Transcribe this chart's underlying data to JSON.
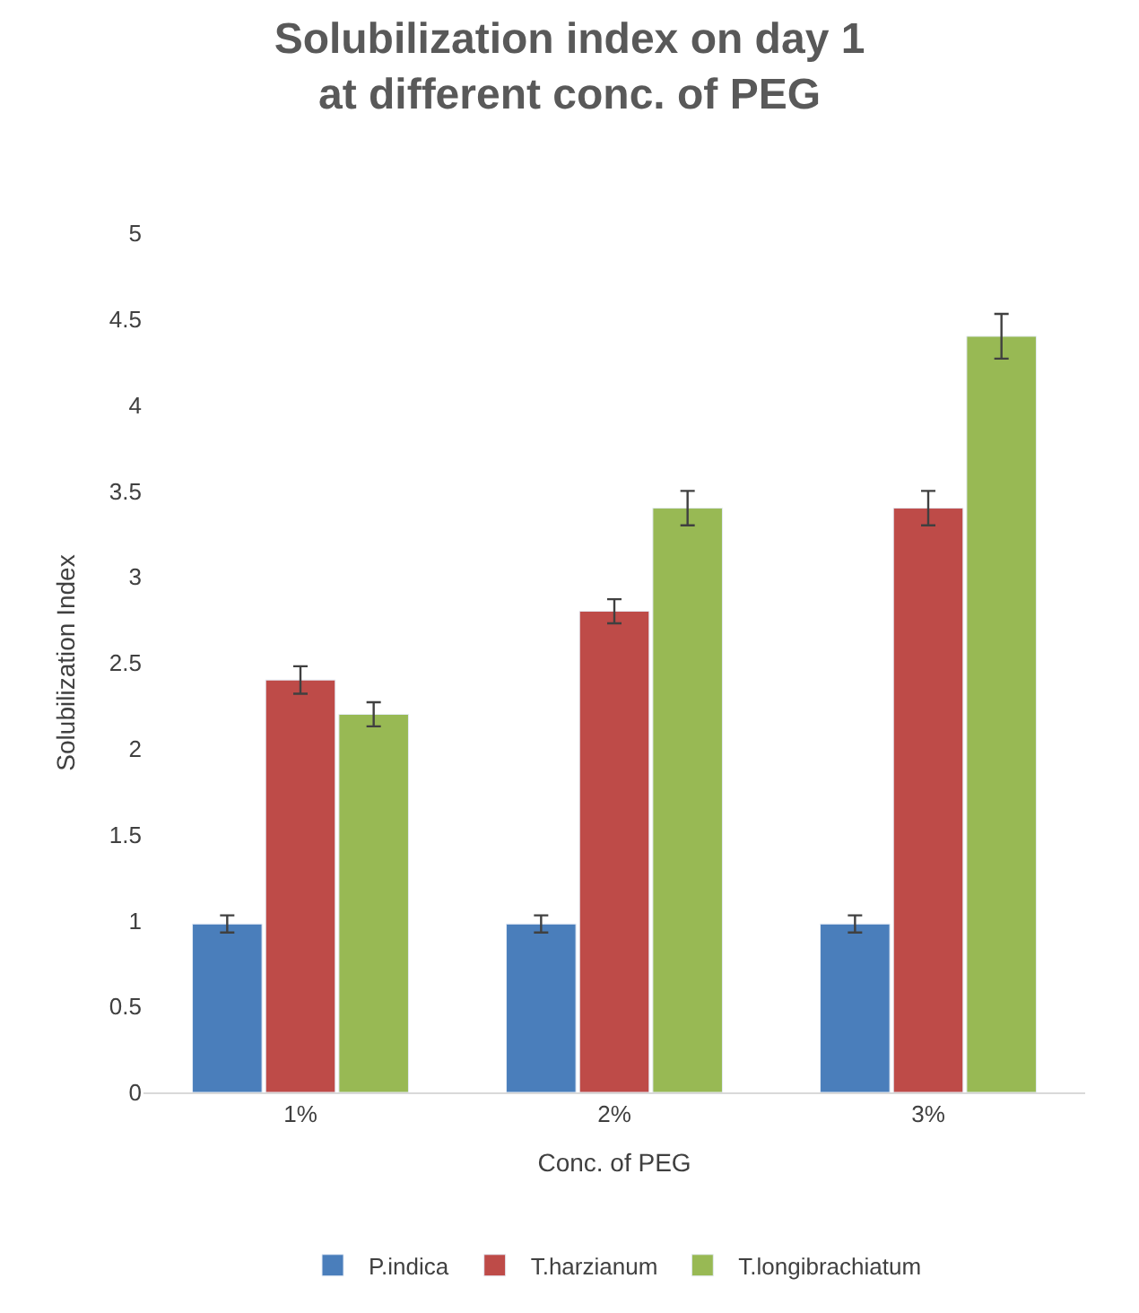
{
  "chart_data": {
    "type": "bar",
    "title": "Solubilization index on day 1 at different conc. of PEG",
    "xlabel": "Conc. of PEG",
    "ylabel": "Solubilization Index",
    "categories": [
      "1%",
      "2%",
      "3%"
    ],
    "series": [
      {
        "name": "P.indica",
        "color": "#4a7ebb",
        "values": [
          0.98,
          0.98,
          0.98
        ],
        "errors": [
          0.05,
          0.05,
          0.05
        ]
      },
      {
        "name": "T.harzianum",
        "color": "#be4b48",
        "values": [
          2.4,
          2.8,
          3.4
        ],
        "errors": [
          0.08,
          0.07,
          0.1
        ]
      },
      {
        "name": "T.longibrachiatum",
        "color": "#98b954",
        "values": [
          2.2,
          3.4,
          4.4
        ],
        "errors": [
          0.07,
          0.1,
          0.13
        ]
      }
    ],
    "ylim": [
      0,
      5
    ],
    "yticks": [
      0,
      0.5,
      1,
      1.5,
      2,
      2.5,
      3,
      3.5,
      4,
      4.5,
      5
    ],
    "legend": "bottom"
  }
}
